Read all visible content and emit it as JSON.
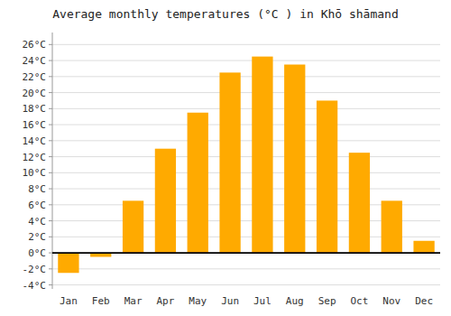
{
  "chart_data": {
    "type": "bar",
    "title": "Average monthly temperatures (°C ) in Khō shāmand",
    "categories": [
      "Jan",
      "Feb",
      "Mar",
      "Apr",
      "May",
      "Jun",
      "Jul",
      "Aug",
      "Sep",
      "Oct",
      "Nov",
      "Dec"
    ],
    "values": [
      -2.5,
      -0.5,
      6.5,
      13.0,
      17.5,
      22.5,
      24.5,
      23.5,
      19.0,
      12.5,
      6.5,
      1.5
    ],
    "color": "#FFAA00",
    "ylim": [
      -4.5,
      27.5
    ],
    "yticks": [
      {
        "value": -4,
        "label": "-4°C"
      },
      {
        "value": -2,
        "label": "-2°C"
      },
      {
        "value": 0,
        "label": "0°C"
      },
      {
        "value": 2,
        "label": "2°C"
      },
      {
        "value": 4,
        "label": "4°C"
      },
      {
        "value": 6,
        "label": "6°C"
      },
      {
        "value": 8,
        "label": "8°C"
      },
      {
        "value": 10,
        "label": "10°C"
      },
      {
        "value": 12,
        "label": "12°C"
      },
      {
        "value": 14,
        "label": "14°C"
      },
      {
        "value": 16,
        "label": "16°C"
      },
      {
        "value": 18,
        "label": "18°C"
      },
      {
        "value": 20,
        "label": "20°C"
      },
      {
        "value": 22,
        "label": "22°C"
      },
      {
        "value": 24,
        "label": "24°C"
      },
      {
        "value": 26,
        "label": "26°C"
      }
    ],
    "grid": true
  }
}
